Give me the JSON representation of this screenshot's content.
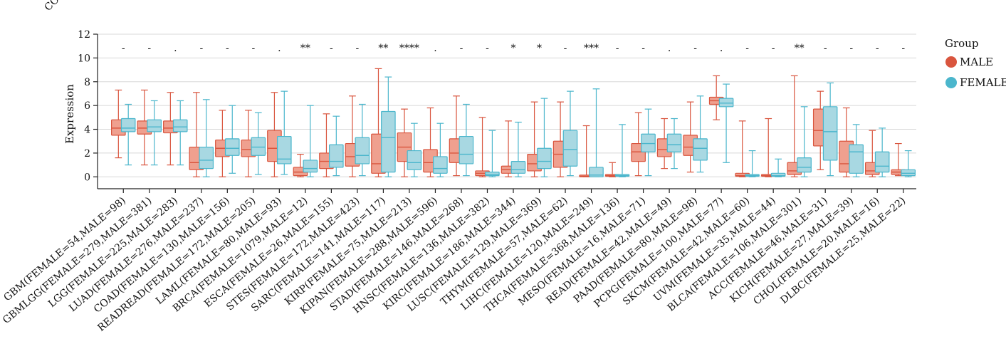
{
  "top_fragment": "CO",
  "chart_data": {
    "type": "boxplot",
    "ylabel": "Expression",
    "ylim": [
      -1,
      12
    ],
    "yticks": [
      0,
      2,
      4,
      6,
      8,
      10,
      12
    ],
    "legend": {
      "title": "Group",
      "position": "right",
      "items": [
        {
          "name": "MALE",
          "color": "#d9553e"
        },
        {
          "name": "FEMALE",
          "color": "#4bb6cc"
        }
      ]
    },
    "groups": [
      {
        "label": "GBM(FEMALE=54,MALE=98)",
        "sig": "-",
        "male": [
          1.6,
          3.5,
          4.1,
          4.8,
          7.3
        ],
        "female": [
          1.0,
          3.8,
          4.1,
          4.9,
          6.1
        ]
      },
      {
        "label": "GBMLGG(FEMALE=279,MALE=381)",
        "sig": "-",
        "male": [
          1.0,
          3.6,
          4.1,
          4.7,
          7.3
        ],
        "female": [
          1.0,
          3.8,
          4.2,
          4.8,
          6.4
        ]
      },
      {
        "label": "LGG(FEMALE=225,MALE=283)",
        "sig": ".",
        "male": [
          1.0,
          3.7,
          4.1,
          4.7,
          7.1
        ],
        "female": [
          1.0,
          3.8,
          4.2,
          4.8,
          6.4
        ]
      },
      {
        "label": "LUAD(FEMALE=276,MALE=237)",
        "sig": "-",
        "male": [
          0.0,
          0.6,
          1.2,
          2.5,
          7.1
        ],
        "female": [
          0.0,
          0.7,
          1.4,
          2.5,
          6.5
        ]
      },
      {
        "label": "COAD(FEMALE=130,MALE=156)",
        "sig": "-",
        "male": [
          0.0,
          1.7,
          2.4,
          3.1,
          5.6
        ],
        "female": [
          0.3,
          1.8,
          2.4,
          3.2,
          6.0
        ]
      },
      {
        "label": "READREAD(FEMALE=172,MALE=205)",
        "sig": "-",
        "male": [
          0.0,
          1.7,
          2.3,
          3.1,
          5.6
        ],
        "female": [
          0.2,
          1.8,
          2.5,
          3.3,
          5.4
        ]
      },
      {
        "label": "LAML(FEMALE=80,MALE=93)",
        "sig": ".",
        "male": [
          0.0,
          1.3,
          2.4,
          3.9,
          7.1
        ],
        "female": [
          0.2,
          1.1,
          1.5,
          3.4,
          7.2
        ]
      },
      {
        "label": "BRCA(FEMALE=1079,MALE=12)",
        "sig": "**",
        "male": [
          0.0,
          0.1,
          0.4,
          0.8,
          1.9
        ],
        "female": [
          0.0,
          0.4,
          0.7,
          1.4,
          6.0
        ]
      },
      {
        "label": "ESCA(FEMALE=26,MALE=155)",
        "sig": "-",
        "male": [
          0.0,
          0.7,
          1.3,
          2.0,
          5.3
        ],
        "female": [
          0.1,
          0.8,
          1.3,
          2.7,
          5.1
        ]
      },
      {
        "label": "STES(FEMALE=172,MALE=423)",
        "sig": "-",
        "male": [
          0.0,
          0.9,
          1.7,
          2.8,
          6.8
        ],
        "female": [
          0.1,
          1.1,
          1.8,
          3.3,
          6.1
        ]
      },
      {
        "label": "SARC(FEMALE=141,MALE=117)",
        "sig": "**",
        "male": [
          0.0,
          0.3,
          1.1,
          3.6,
          9.1
        ],
        "female": [
          0.0,
          0.4,
          3.3,
          5.5,
          8.4
        ]
      },
      {
        "label": "KIRP(FEMALE=75,MALE=213)",
        "sig": "****",
        "male": [
          0.0,
          1.3,
          2.5,
          3.7,
          5.7
        ],
        "female": [
          0.0,
          0.6,
          1.2,
          2.2,
          4.5
        ]
      },
      {
        "label": "KIPAN(FEMALE=288,MALE=596)",
        "sig": ".",
        "male": [
          0.0,
          0.4,
          1.2,
          2.3,
          5.8
        ],
        "female": [
          0.0,
          0.3,
          0.7,
          1.7,
          4.5
        ]
      },
      {
        "label": "STAD(FEMALE=146,MALE=268)",
        "sig": "-",
        "male": [
          0.1,
          1.2,
          2.0,
          3.2,
          6.8
        ],
        "female": [
          0.1,
          1.1,
          1.9,
          3.4,
          6.1
        ]
      },
      {
        "label": "HNSC(FEMALE=136,MALE=382)",
        "sig": "-",
        "male": [
          0.0,
          0.1,
          0.3,
          0.5,
          5.0
        ],
        "female": [
          0.0,
          0.1,
          0.2,
          0.4,
          3.9
        ]
      },
      {
        "label": "KIRC(FEMALE=186,MALE=344)",
        "sig": "*",
        "male": [
          0.0,
          0.3,
          0.6,
          0.9,
          4.7
        ],
        "female": [
          0.0,
          0.3,
          0.6,
          1.3,
          4.6
        ]
      },
      {
        "label": "LUSC(FEMALE=129,MALE=369)",
        "sig": "*",
        "male": [
          0.0,
          0.5,
          1.1,
          1.9,
          6.3
        ],
        "female": [
          0.0,
          0.7,
          1.3,
          2.4,
          6.6
        ]
      },
      {
        "label": "THYM(FEMALE=57,MALE=62)",
        "sig": "-",
        "male": [
          0.0,
          0.8,
          1.9,
          3.0,
          6.3
        ],
        "female": [
          0.1,
          0.9,
          2.3,
          3.9,
          7.2
        ]
      },
      {
        "label": "LIHC(FEMALE=120,MALE=249)",
        "sig": "***",
        "male": [
          0.0,
          0.0,
          0.05,
          0.15,
          4.3
        ],
        "female": [
          0.0,
          0.0,
          0.15,
          0.8,
          7.4
        ]
      },
      {
        "label": "THCA(FEMALE=368,MALE=136)",
        "sig": "-",
        "male": [
          0.0,
          0.05,
          0.1,
          0.2,
          1.2
        ],
        "female": [
          0.0,
          0.05,
          0.1,
          0.2,
          4.4
        ]
      },
      {
        "label": "MESO(FEMALE=16,MALE=71)",
        "sig": "-",
        "male": [
          0.1,
          1.3,
          2.1,
          2.8,
          5.4
        ],
        "female": [
          0.1,
          2.1,
          2.8,
          3.6,
          5.7
        ]
      },
      {
        "label": "READ(FEMALE=42,MALE=49)",
        "sig": ".",
        "male": [
          0.7,
          1.7,
          2.3,
          3.2,
          4.9
        ],
        "female": [
          0.7,
          2.1,
          2.7,
          3.6,
          4.9
        ]
      },
      {
        "label": "PAAD(FEMALE=80,MALE=98)",
        "sig": "-",
        "male": [
          0.4,
          1.8,
          2.5,
          3.5,
          6.3
        ],
        "female": [
          0.4,
          1.4,
          2.4,
          3.2,
          6.8
        ]
      },
      {
        "label": "PCPG(FEMALE=100,MALE=77)",
        "sig": ".",
        "male": [
          4.8,
          6.1,
          6.4,
          6.7,
          8.5
        ],
        "female": [
          1.2,
          5.9,
          6.2,
          6.6,
          7.8
        ]
      },
      {
        "label": "SKCM(FEMALE=42,MALE=60)",
        "sig": "-",
        "male": [
          0.0,
          0.05,
          0.1,
          0.3,
          4.7
        ],
        "female": [
          0.0,
          0.05,
          0.1,
          0.2,
          2.2
        ]
      },
      {
        "label": "UVM(FEMALE=35,MALE=44)",
        "sig": "-",
        "male": [
          0.0,
          0.05,
          0.1,
          0.2,
          4.9
        ],
        "female": [
          0.0,
          0.05,
          0.1,
          0.3,
          1.5
        ]
      },
      {
        "label": "BLCA(FEMALE=106,MALE=301)",
        "sig": "**",
        "male": [
          0.0,
          0.2,
          0.5,
          1.2,
          8.5
        ],
        "female": [
          0.0,
          0.4,
          0.8,
          1.6,
          5.9
        ]
      },
      {
        "label": "ACC(FEMALE=46,MALE=31)",
        "sig": "-",
        "male": [
          0.6,
          2.6,
          3.9,
          5.7,
          7.2
        ],
        "female": [
          0.1,
          1.4,
          3.8,
          5.9,
          7.9
        ]
      },
      {
        "label": "KICH(FEMALE=27,MALE=39)",
        "sig": "-",
        "male": [
          0.0,
          0.4,
          1.1,
          3.0,
          5.8
        ],
        "female": [
          0.0,
          0.3,
          2.1,
          2.7,
          4.4
        ]
      },
      {
        "label": "CHOL(FEMALE=20,MALE=16)",
        "sig": "-",
        "male": [
          0.0,
          0.2,
          0.5,
          1.2,
          3.9
        ],
        "female": [
          0.0,
          0.4,
          0.9,
          2.1,
          4.1
        ]
      },
      {
        "label": "DLBC(FEMALE=25,MALE=22)",
        "sig": "-",
        "male": [
          0.1,
          0.2,
          0.4,
          0.6,
          2.8
        ],
        "female": [
          0.0,
          0.1,
          0.3,
          0.6,
          2.2
        ]
      }
    ]
  }
}
